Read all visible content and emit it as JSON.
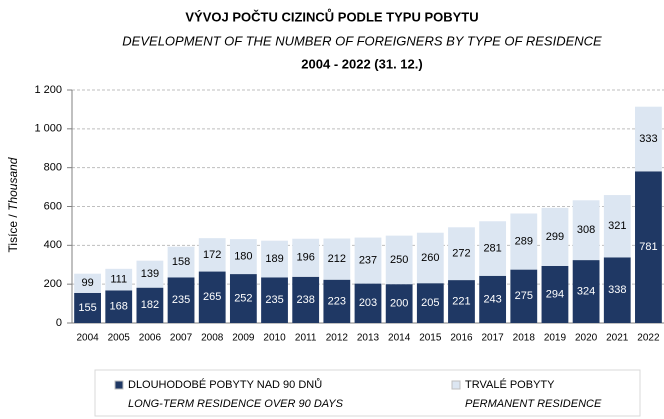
{
  "chart_data": {
    "type": "stacked_bar",
    "title": "VÝVOJ POČTU CIZINCŮ PODLE TYPU POBYTU",
    "subtitle": "DEVELOPMENT OF THE NUMBER OF FOREIGNERS BY TYPE OF RESIDENCE",
    "period": "2004 - 2022 (31. 12.)",
    "y_label": "Tisíce /",
    "y_label_en": "Thousand",
    "categories": [
      "2004",
      "2005",
      "2006",
      "2007",
      "2008",
      "2009",
      "2010",
      "2011",
      "2012",
      "2013",
      "2014",
      "2015",
      "2016",
      "2017",
      "2018",
      "2019",
      "2020",
      "2021",
      "2022"
    ],
    "series": [
      {
        "name": "DLOUHODOBÉ POBYTY NAD 90 DNŮ",
        "name_en": "LONG-TERM RESIDENCE OVER 90 DAYS",
        "color": "#1f3864",
        "label_color": "#ffffff",
        "values": [
          155,
          168,
          182,
          235,
          265,
          252,
          235,
          238,
          223,
          203,
          200,
          205,
          221,
          243,
          275,
          294,
          324,
          338,
          781
        ]
      },
      {
        "name": "TRVALÉ POBYTY",
        "name_en": "PERMANENT RESIDENCE",
        "color": "#dce6f2",
        "label_color": "#000000",
        "values": [
          99,
          111,
          139,
          158,
          172,
          180,
          189,
          196,
          212,
          237,
          250,
          260,
          272,
          281,
          289,
          299,
          308,
          321,
          333
        ]
      }
    ],
    "ylim": [
      0,
      1200
    ],
    "yticks": [
      0,
      200,
      400,
      600,
      800,
      {
        "value": 1000,
        "label": "1 000"
      },
      {
        "value": 1200,
        "label": "1 200"
      }
    ],
    "grid": true
  }
}
